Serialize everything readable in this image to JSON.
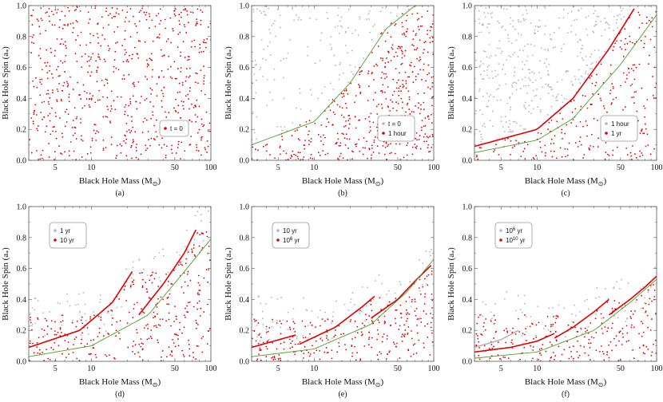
{
  "colors": {
    "red": "#e00000",
    "gray": "#b4b4b4",
    "green": "#4aa02c",
    "frame": "#555555"
  },
  "chart_data": [
    {
      "type": "scatter",
      "panel_label": "(a)",
      "xlabel": "Black Hole Mass",
      "xunit": "(M",
      "xunit_sub": "⊙",
      "xunit_close": ")",
      "ylabel": "Black Hole Spin",
      "yunit": "(a",
      "yunit_sub": "*",
      "yunit_close": ")",
      "xscale": "log",
      "xlim": [
        3,
        100
      ],
      "ylim": [
        0,
        1
      ],
      "xticks": [
        "5",
        "10",
        "50",
        "100"
      ],
      "yticks": [
        "0.0",
        "0.2",
        "0.4",
        "0.6",
        "0.8",
        "1.0"
      ],
      "legend": [
        {
          "label": "t = 0",
          "sup": "",
          "suffix": "",
          "color": "red"
        }
      ],
      "legend_position": "lower-right",
      "series": [
        {
          "color": "red",
          "distribution": "uniform random",
          "count": 700,
          "region": "full"
        }
      ],
      "curves": []
    },
    {
      "type": "scatter",
      "panel_label": "(b)",
      "xlabel": "Black Hole Mass",
      "xunit": "(M",
      "xunit_sub": "⊙",
      "xunit_close": ")",
      "ylabel": "Black Hole Spin",
      "yunit": "(a",
      "yunit_sub": "*",
      "yunit_close": ")",
      "xscale": "log",
      "xlim": [
        3,
        100
      ],
      "ylim": [
        0,
        1
      ],
      "xticks": [
        "5",
        "10",
        "50",
        "100"
      ],
      "yticks": [
        "0.0",
        "0.2",
        "0.4",
        "0.6",
        "0.8",
        "1.0"
      ],
      "legend": [
        {
          "label": "t = 0",
          "sup": "",
          "suffix": "",
          "color": "gray"
        },
        {
          "label": "1 hour",
          "sup": "",
          "suffix": "",
          "color": "red"
        }
      ],
      "legend_position": "lower-right",
      "series": [
        {
          "color": "gray",
          "distribution": "uniform random",
          "count": 150,
          "region": "above green curve"
        },
        {
          "color": "red",
          "distribution": "uniform random",
          "count": 480,
          "region": "below green curve"
        }
      ],
      "curves": [
        {
          "color": "green",
          "points": [
            [
              3,
              0.1
            ],
            [
              10,
              0.25
            ],
            [
              20,
              0.5
            ],
            [
              40,
              0.85
            ],
            [
              70,
              1.0
            ],
            [
              90,
              1.0
            ]
          ]
        }
      ]
    },
    {
      "type": "scatter",
      "panel_label": "(c)",
      "xlabel": "Black Hole Mass",
      "xunit": "(M",
      "xunit_sub": "⊙",
      "xunit_close": ")",
      "ylabel": "Black Hole Spin",
      "yunit": "(a",
      "yunit_sub": "*",
      "yunit_close": ")",
      "xscale": "log",
      "xlim": [
        3,
        100
      ],
      "ylim": [
        0,
        1
      ],
      "xticks": [
        "5",
        "10",
        "50",
        "100"
      ],
      "yticks": [
        "0.0",
        "0.2",
        "0.4",
        "0.6",
        "0.8",
        "1.0"
      ],
      "legend": [
        {
          "label": "1 hour",
          "sup": "",
          "suffix": "",
          "color": "gray"
        },
        {
          "label": "1 yr",
          "sup": "",
          "suffix": "",
          "color": "red"
        }
      ],
      "legend_position": "lower-right",
      "series": [
        {
          "color": "gray",
          "distribution": "uniform random",
          "count": 380,
          "region": "above red ridge"
        },
        {
          "color": "red",
          "distribution": "uniform random",
          "count": 260,
          "region": "below red ridge"
        }
      ],
      "curves": [
        {
          "color": "red",
          "points": [
            [
              3,
              0.09
            ],
            [
              10,
              0.2
            ],
            [
              20,
              0.4
            ],
            [
              40,
              0.72
            ],
            [
              65,
              0.98
            ]
          ]
        },
        {
          "color": "green",
          "points": [
            [
              3,
              0.05
            ],
            [
              10,
              0.13
            ],
            [
              20,
              0.27
            ],
            [
              50,
              0.62
            ],
            [
              100,
              0.94
            ]
          ]
        }
      ]
    },
    {
      "type": "scatter",
      "panel_label": "(d)",
      "xlabel": "Black Hole Mass",
      "xunit": "(M",
      "xunit_sub": "⊙",
      "xunit_close": ")",
      "ylabel": "Black Hole Spin",
      "yunit": "(a",
      "yunit_sub": "*",
      "yunit_close": ")",
      "xscale": "log",
      "xlim": [
        3,
        100
      ],
      "ylim": [
        0,
        1
      ],
      "xticks": [
        "5",
        "10",
        "50",
        "100"
      ],
      "yticks": [
        "0.0",
        "0.2",
        "0.4",
        "0.6",
        "0.8",
        "1.0"
      ],
      "legend": [
        {
          "label": "1 yr",
          "sup": "",
          "suffix": "",
          "color": "gray"
        },
        {
          "label": "10 yr",
          "sup": "",
          "suffix": "",
          "color": "red"
        }
      ],
      "legend_position": "upper-left",
      "series": [
        {
          "color": "gray",
          "distribution": "sparse random",
          "count": 90,
          "region": "near ridges"
        },
        {
          "color": "red",
          "distribution": "uniform random",
          "count": 330,
          "region": "below ridges"
        }
      ],
      "curves": [
        {
          "color": "red",
          "points": [
            [
              3,
              0.09
            ],
            [
              8,
              0.2
            ],
            [
              15,
              0.38
            ],
            [
              22,
              0.58
            ]
          ]
        },
        {
          "color": "red",
          "points": [
            [
              25,
              0.3
            ],
            [
              40,
              0.5
            ],
            [
              60,
              0.7
            ],
            [
              75,
              0.85
            ]
          ]
        },
        {
          "color": "green",
          "points": [
            [
              3,
              0.03
            ],
            [
              10,
              0.1
            ],
            [
              30,
              0.3
            ],
            [
              60,
              0.58
            ],
            [
              100,
              0.79
            ]
          ]
        }
      ]
    },
    {
      "type": "scatter",
      "panel_label": "(e)",
      "xlabel": "Black Hole Mass",
      "xunit": "(M",
      "xunit_sub": "⊙",
      "xunit_close": ")",
      "ylabel": "Black Hole Spin",
      "yunit": "(a",
      "yunit_sub": "*",
      "yunit_close": ")",
      "xscale": "log",
      "xlim": [
        3,
        100
      ],
      "ylim": [
        0,
        1
      ],
      "xticks": [
        "5",
        "10",
        "50",
        "100"
      ],
      "yticks": [
        "0.0",
        "0.2",
        "0.4",
        "0.6",
        "0.8",
        "1.0"
      ],
      "legend": [
        {
          "label": "10 yr",
          "sup": "",
          "suffix": "",
          "color": "gray"
        },
        {
          "label": "10",
          "sup": "6",
          "suffix": " yr",
          "color": "red"
        }
      ],
      "legend_position": "upper-left",
      "series": [
        {
          "color": "gray",
          "distribution": "sparse random",
          "count": 90,
          "region": "near ridges"
        },
        {
          "color": "red",
          "distribution": "uniform random",
          "count": 290,
          "region": "below ridges"
        }
      ],
      "curves": [
        {
          "color": "red",
          "points": [
            [
              3,
              0.09
            ],
            [
              7,
              0.17
            ]
          ]
        },
        {
          "color": "red",
          "points": [
            [
              7.5,
              0.11
            ],
            [
              15,
              0.22
            ],
            [
              25,
              0.35
            ],
            [
              32,
              0.42
            ]
          ]
        },
        {
          "color": "red",
          "points": [
            [
              30,
              0.28
            ],
            [
              50,
              0.4
            ],
            [
              70,
              0.52
            ],
            [
              95,
              0.62
            ]
          ]
        },
        {
          "color": "green",
          "points": [
            [
              3,
              0.03
            ],
            [
              10,
              0.08
            ],
            [
              30,
              0.24
            ],
            [
              60,
              0.45
            ],
            [
              100,
              0.66
            ]
          ]
        }
      ]
    },
    {
      "type": "scatter",
      "panel_label": "(f)",
      "xlabel": "Black Hole Mass",
      "xunit": "(M",
      "xunit_sub": "⊙",
      "xunit_close": ")",
      "ylabel": "Black Hole Spin",
      "yunit": "(a",
      "yunit_sub": "*",
      "yunit_close": ")",
      "xscale": "log",
      "xlim": [
        3,
        100
      ],
      "ylim": [
        0,
        1
      ],
      "xticks": [
        "5",
        "10",
        "50",
        "100"
      ],
      "yticks": [
        "0.0",
        "0.2",
        "0.4",
        "0.6",
        "0.8",
        "1.0"
      ],
      "legend": [
        {
          "label": "10",
          "sup": "6",
          "suffix": " yr",
          "color": "gray"
        },
        {
          "label": "10",
          "sup": "10",
          "suffix": " yr",
          "color": "red"
        }
      ],
      "legend_position": "upper-left",
      "series": [
        {
          "color": "gray",
          "distribution": "sparse random",
          "count": 80,
          "region": "near ridges"
        },
        {
          "color": "red",
          "distribution": "uniform random",
          "count": 260,
          "region": "below ridges"
        }
      ],
      "curves": [
        {
          "color": "gray",
          "points": [
            [
              3,
              0.09
            ],
            [
              5,
              0.14
            ],
            [
              7,
              0.2
            ]
          ]
        },
        {
          "color": "red",
          "points": [
            [
              3,
              0.06
            ],
            [
              6,
              0.09
            ],
            [
              10,
              0.13
            ],
            [
              14,
              0.18
            ]
          ]
        },
        {
          "color": "red",
          "points": [
            [
              14,
              0.15
            ],
            [
              20,
              0.22
            ],
            [
              30,
              0.32
            ],
            [
              40,
              0.4
            ]
          ]
        },
        {
          "color": "red",
          "points": [
            [
              40,
              0.3
            ],
            [
              60,
              0.4
            ],
            [
              80,
              0.48
            ],
            [
              100,
              0.55
            ]
          ]
        },
        {
          "color": "green",
          "points": [
            [
              3,
              0.02
            ],
            [
              10,
              0.06
            ],
            [
              30,
              0.2
            ],
            [
              60,
              0.38
            ],
            [
              100,
              0.53
            ]
          ]
        }
      ]
    }
  ]
}
